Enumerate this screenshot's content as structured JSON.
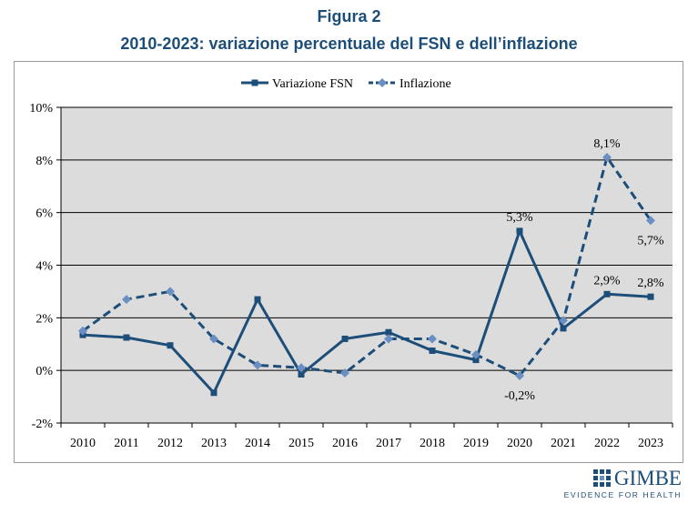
{
  "figure": {
    "title": "Figura 2",
    "subtitle": "2010-2023: variazione percentuale del FSN e dell’inflazione"
  },
  "logo": {
    "wordmark": "GIMBE",
    "tagline": "EVIDENCE FOR HEALTH"
  },
  "colors": {
    "series_fsn": "#1d4e79",
    "series_inflazione": "#6b8fc2",
    "plot_background": "#dcdcdc",
    "title": "#1d4e79"
  },
  "chart_data": {
    "type": "line",
    "categories": [
      "2010",
      "2011",
      "2012",
      "2013",
      "2014",
      "2015",
      "2016",
      "2017",
      "2018",
      "2019",
      "2020",
      "2021",
      "2022",
      "2023"
    ],
    "series": [
      {
        "name": "Variazione FSN",
        "style": "solid",
        "marker": "square",
        "values": [
          1.35,
          1.25,
          0.95,
          -0.85,
          2.7,
          -0.15,
          1.2,
          1.45,
          0.75,
          0.4,
          5.3,
          1.6,
          2.9,
          2.8
        ]
      },
      {
        "name": "Inflazione",
        "style": "dashed",
        "marker": "diamond",
        "values": [
          1.5,
          2.7,
          3.0,
          1.2,
          0.2,
          0.1,
          -0.1,
          1.2,
          1.2,
          0.6,
          -0.2,
          1.9,
          8.1,
          5.7
        ]
      }
    ],
    "data_labels": [
      {
        "series": "Variazione FSN",
        "category": "2020",
        "text": "5,3%",
        "placement": "above"
      },
      {
        "series": "Variazione FSN",
        "category": "2022",
        "text": "2,9%",
        "placement": "above"
      },
      {
        "series": "Variazione FSN",
        "category": "2023",
        "text": "2,8%",
        "placement": "above"
      },
      {
        "series": "Inflazione",
        "category": "2020",
        "text": "-0,2%",
        "placement": "below"
      },
      {
        "series": "Inflazione",
        "category": "2022",
        "text": "8,1%",
        "placement": "above"
      },
      {
        "series": "Inflazione",
        "category": "2023",
        "text": "5,7%",
        "placement": "below"
      }
    ],
    "ylim": [
      -2,
      10
    ],
    "yticks": [
      -2,
      0,
      2,
      4,
      6,
      8,
      10
    ],
    "ytick_labels": [
      "-2%",
      "0%",
      "2%",
      "4%",
      "6%",
      "8%",
      "10%"
    ],
    "grid": true,
    "legend_position": "top"
  }
}
